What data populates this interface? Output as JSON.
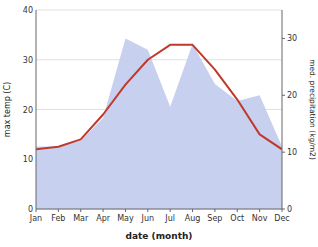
{
  "chart_data": {
    "type": "line",
    "categories": [
      "Jan",
      "Feb",
      "Mar",
      "Apr",
      "May",
      "Jun",
      "Jul",
      "Aug",
      "Sep",
      "Oct",
      "Nov",
      "Dec"
    ],
    "xlabel": "date (month)",
    "ylabel": "max temp (C)",
    "y2label": "med. precipitation (kg/m2)",
    "series": [
      {
        "type": "area",
        "axis": "y2",
        "color": "#c8d0f0",
        "values": [
          11,
          11,
          12,
          16,
          30,
          28,
          18,
          29,
          22,
          19,
          20,
          11
        ]
      },
      {
        "type": "line",
        "color": "#c0392b",
        "values": [
          12,
          12.5,
          14,
          19,
          25,
          30,
          33,
          33,
          28,
          22,
          15,
          12
        ]
      }
    ],
    "ylim": [
      0,
      40
    ],
    "yticks": [
      0,
      10,
      20,
      30,
      40
    ],
    "y2lim": [
      0,
      35
    ],
    "y2ticks": [
      0,
      10,
      20,
      30
    ],
    "grid": true
  }
}
